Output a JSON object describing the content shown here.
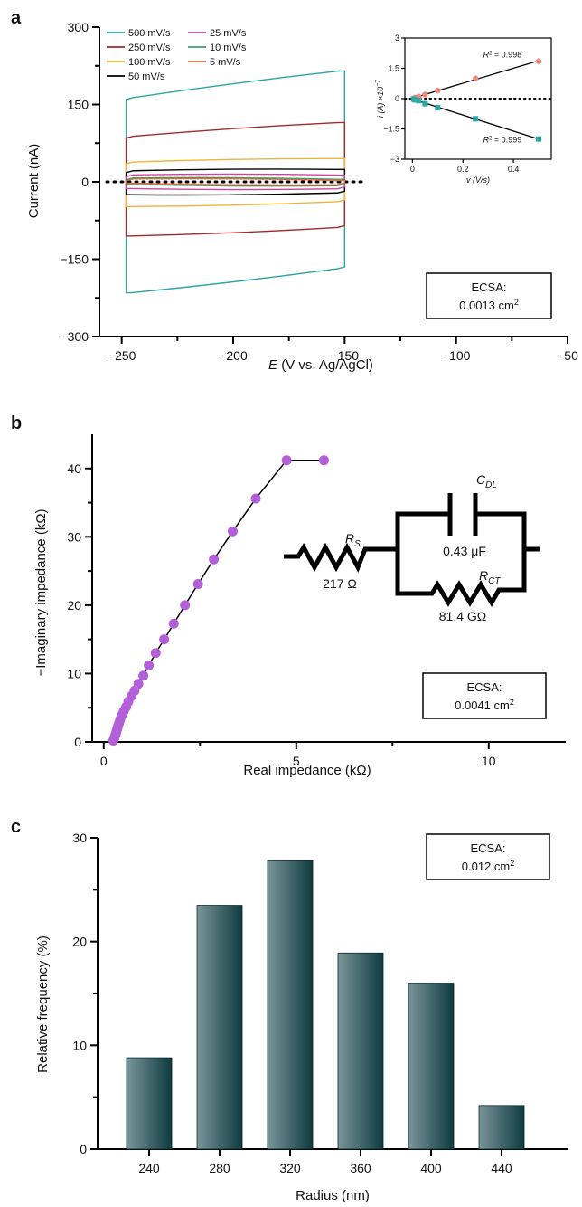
{
  "chart_data": [
    {
      "panel": "a",
      "type": "line",
      "xlabel_italic": "E",
      "xlabel_rest": " (V vs. Ag/AgCl)",
      "ylabel": "Current (nA)",
      "xlim": [
        -260,
        -50
      ],
      "ylim": [
        -300,
        300
      ],
      "xticks": [
        "−250",
        "−200",
        "−150",
        "−100",
        "−50"
      ],
      "xtick_values": [
        -250,
        -200,
        -150,
        -100,
        -50
      ],
      "yticks": [
        "−300",
        "−150",
        "0",
        "150",
        "300"
      ],
      "ytick_values": [
        -300,
        -150,
        0,
        150,
        300
      ],
      "legend_position": "top-left",
      "series": [
        {
          "name": "500 mV/s",
          "color": "#2aa6a3",
          "left_upper": 160,
          "right_upper": 215,
          "left_lower": -215,
          "right_lower": -165
        },
        {
          "name": "250 mV/s",
          "color": "#a3282c",
          "left_upper": 85,
          "right_upper": 115,
          "left_lower": -105,
          "right_lower": -85
        },
        {
          "name": "100 mV/s",
          "color": "#f0b43a",
          "left_upper": 35,
          "right_upper": 45,
          "left_lower": -48,
          "right_lower": -35
        },
        {
          "name": "50 mV/s",
          "color": "#000000",
          "left_upper": 18,
          "right_upper": 24,
          "left_lower": -25,
          "right_lower": -18
        },
        {
          "name": "25 mV/s",
          "color": "#c8469c",
          "left_upper": 10,
          "right_upper": 13,
          "left_lower": -13,
          "right_lower": -10
        },
        {
          "name": "10 mV/s",
          "color": "#3f9a6a",
          "left_upper": 4,
          "right_upper": 5,
          "left_lower": -5,
          "right_lower": -4
        },
        {
          "name": "5 mV/s",
          "color": "#e8653e",
          "left_upper": 2,
          "right_upper": 2.5,
          "left_lower": -2.5,
          "right_lower": -2
        }
      ],
      "potential_window": [
        -248,
        -150
      ],
      "ecsa_label": "ECSA:",
      "ecsa_value": "0.0013 cm",
      "ecsa_sup": "2",
      "inset": {
        "ylabel": "i (A) ×10",
        "ylabel_sup": "−7",
        "xlabel": "v (V/s)",
        "xlim": [
          -0.03,
          0.55
        ],
        "ylim": [
          -3,
          3
        ],
        "xticks": [
          "0",
          "0.2",
          "0.4"
        ],
        "xtick_values": [
          0,
          0.2,
          0.4
        ],
        "yticks": [
          "3",
          "1.5",
          "0",
          "−1.5",
          "−3"
        ],
        "ytick_values": [
          3,
          1.5,
          0,
          -1.5,
          -3
        ],
        "anodic": {
          "color": "#f08a7c",
          "x": [
            0.005,
            0.01,
            0.025,
            0.05,
            0.1,
            0.25,
            0.5
          ],
          "y": [
            0.02,
            0.05,
            0.1,
            0.2,
            0.4,
            1.0,
            1.85
          ],
          "r2_label": "R",
          "r2_value": "= 0.998"
        },
        "cathodic": {
          "color": "#2aa6a3",
          "x": [
            0.005,
            0.01,
            0.025,
            0.05,
            0.1,
            0.25,
            0.5
          ],
          "y": [
            -0.02,
            -0.06,
            -0.1,
            -0.25,
            -0.45,
            -1.0,
            -2.0
          ],
          "r2_label": "R",
          "r2_value": "= 0.999"
        }
      }
    },
    {
      "panel": "b",
      "type": "scatter",
      "xlabel": "Real impedance (kΩ)",
      "ylabel": "−Imaginary impedance (kΩ)",
      "xlim": [
        -0.3,
        12
      ],
      "ylim": [
        0,
        45
      ],
      "xticks": [
        "0",
        "5",
        "10"
      ],
      "xtick_values": [
        0,
        5,
        10
      ],
      "yticks": [
        "0",
        "10",
        "20",
        "30",
        "40"
      ],
      "ytick_values": [
        0,
        10,
        20,
        30,
        40
      ],
      "color": "#b35fd8",
      "x": [
        0.25,
        0.27,
        0.29,
        0.31,
        0.33,
        0.35,
        0.37,
        0.4,
        0.43,
        0.47,
        0.52,
        0.58,
        0.64,
        0.72,
        0.8,
        0.9,
        1.03,
        1.17,
        1.35,
        1.57,
        1.82,
        2.11,
        2.45,
        2.86,
        3.35,
        3.95,
        4.75,
        5.72
      ],
      "y": [
        0.2,
        0.5,
        0.8,
        1.1,
        1.5,
        1.9,
        2.3,
        2.8,
        3.3,
        3.9,
        4.5,
        5.1,
        5.9,
        6.7,
        7.5,
        8.5,
        9.7,
        11.2,
        13.0,
        15.0,
        17.3,
        20.0,
        23.1,
        26.7,
        30.8,
        35.6,
        41.2,
        41.2
      ],
      "circuit": {
        "rs_label": "R",
        "rs_sub": "S",
        "rs_value": "217 Ω",
        "cdl_label": "C",
        "cdl_sub": "DL",
        "cdl_value": "0.43 μF",
        "rct_label": "R",
        "rct_sub": "CT",
        "rct_value": "81.4 GΩ"
      },
      "ecsa_label": "ECSA:",
      "ecsa_value": "0.0041 cm",
      "ecsa_sup": "2"
    },
    {
      "panel": "c",
      "type": "bar",
      "xlabel": "Radius (nm)",
      "ylabel": "Relative frequency (%)",
      "categories": [
        "240",
        "280",
        "320",
        "360",
        "400",
        "440"
      ],
      "values": [
        8.8,
        23.5,
        27.8,
        18.9,
        16.0,
        4.2
      ],
      "ylim": [
        0,
        30
      ],
      "yticks": [
        "0",
        "10",
        "20",
        "30"
      ],
      "ytick_values": [
        0,
        10,
        20,
        30
      ],
      "bar_color_light": "#7a959a",
      "bar_color_dark": "#0d3b3e",
      "ecsa_label": "ECSA:",
      "ecsa_value": "0.012 cm",
      "ecsa_sup": "2"
    }
  ],
  "panels": {
    "a": "a",
    "b": "b",
    "c": "c"
  }
}
